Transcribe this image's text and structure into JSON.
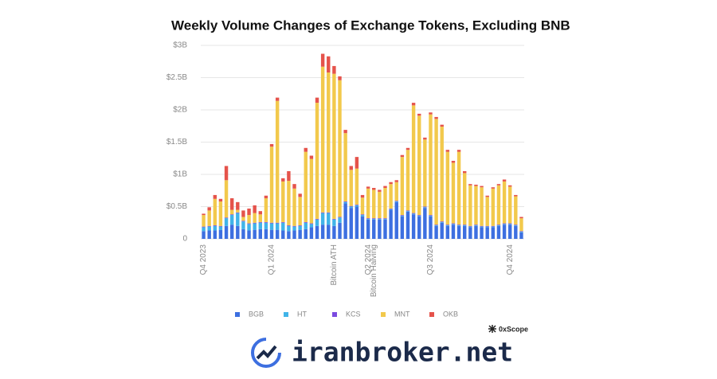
{
  "chart_data": {
    "type": "stacked-bar",
    "title": "Weekly Volume Changes of Exchange Tokens, Excluding BNB",
    "source": "0xScope",
    "watermark": "iranbroker.net",
    "categories": [
      "Q4 2023",
      null,
      null,
      null,
      null,
      null,
      null,
      null,
      null,
      null,
      null,
      null,
      "Q1 2024",
      null,
      null,
      null,
      null,
      null,
      null,
      null,
      null,
      null,
      null,
      "Bitcoin ATH",
      null,
      null,
      null,
      null,
      null,
      "Q2 2024",
      "Bitcoin Halving",
      null,
      null,
      null,
      null,
      null,
      null,
      null,
      null,
      null,
      "Q3 2024",
      null,
      null,
      null,
      null,
      null,
      null,
      null,
      null,
      null,
      null,
      null,
      null,
      null,
      "Q4 2024",
      null,
      null
    ],
    "ylim": [
      0,
      3
    ],
    "yticks": [
      0,
      {
        "value": 0.5,
        "label": "$0.5B"
      },
      {
        "value": 1,
        "label": "$1B"
      },
      {
        "value": 1.5,
        "label": "$1.5B"
      },
      {
        "value": 2,
        "label": "$2B"
      },
      {
        "value": 2.5,
        "label": "$2.5B"
      },
      {
        "value": 3,
        "label": "$3B"
      }
    ],
    "grid": true,
    "legend": "bottom",
    "series": [
      {
        "name": "BGB",
        "color": "#3d6fe0",
        "values": [
          0.12,
          0.13,
          0.13,
          0.14,
          0.2,
          0.22,
          0.2,
          0.15,
          0.13,
          0.14,
          0.15,
          0.15,
          0.14,
          0.14,
          0.13,
          0.12,
          0.13,
          0.14,
          0.15,
          0.18,
          0.2,
          0.22,
          0.22,
          0.2,
          0.25,
          0.55,
          0.48,
          0.5,
          0.35,
          0.3,
          0.3,
          0.3,
          0.3,
          0.45,
          0.57,
          0.35,
          0.42,
          0.38,
          0.35,
          0.48,
          0.35,
          0.2,
          0.25,
          0.2,
          0.22,
          0.2,
          0.2,
          0.18,
          0.2,
          0.18,
          0.18,
          0.18,
          0.2,
          0.22,
          0.22,
          0.2,
          0.1
        ]
      },
      {
        "name": "HT",
        "color": "#41b4e8",
        "values": [
          0.06,
          0.06,
          0.07,
          0.05,
          0.12,
          0.15,
          0.2,
          0.12,
          0.1,
          0.1,
          0.1,
          0.1,
          0.1,
          0.1,
          0.12,
          0.08,
          0.06,
          0.06,
          0.1,
          0.05,
          0.1,
          0.18,
          0.18,
          0.1,
          0.08,
          0.02,
          0.02,
          0.02,
          0.02,
          0.01,
          0.01,
          0.01,
          0.01,
          0.01,
          0.01,
          0.01,
          0.01,
          0.01,
          0.01,
          0.01,
          0.01,
          0.01,
          0.01,
          0.01,
          0.01,
          0.01,
          0.01,
          0.01,
          0.01,
          0.01,
          0.01,
          0.01,
          0.01,
          0.01,
          0.01,
          0.01,
          0.01
        ]
      },
      {
        "name": "KCS",
        "color": "#7b4be0",
        "values": [
          0.01,
          0.01,
          0.01,
          0.01,
          0.01,
          0.01,
          0.01,
          0.01,
          0.01,
          0.01,
          0.01,
          0.01,
          0.01,
          0.01,
          0.01,
          0.01,
          0.01,
          0.01,
          0.01,
          0.01,
          0.01,
          0.01,
          0.01,
          0.01,
          0.01,
          0.01,
          0.01,
          0.01,
          0.01,
          0.01,
          0.01,
          0.01,
          0.01,
          0.01,
          0.01,
          0.01,
          0.01,
          0.01,
          0.01,
          0.01,
          0.01,
          0.01,
          0.01,
          0.01,
          0.01,
          0.01,
          0.01,
          0.01,
          0.01,
          0.01,
          0.01,
          0.01,
          0.01,
          0.01,
          0.01,
          0.01,
          0.01
        ]
      },
      {
        "name": "MNT",
        "color": "#f2c94c",
        "values": [
          0.18,
          0.24,
          0.41,
          0.38,
          0.58,
          0.07,
          0.04,
          0.06,
          0.13,
          0.15,
          0.12,
          0.37,
          1.18,
          1.89,
          0.63,
          0.69,
          0.58,
          0.44,
          1.09,
          1.0,
          1.8,
          2.26,
          2.17,
          2.25,
          2.12,
          1.06,
          0.56,
          0.56,
          0.26,
          0.46,
          0.44,
          0.41,
          0.47,
          0.38,
          0.29,
          0.9,
          0.94,
          1.67,
          1.54,
          1.04,
          1.56,
          1.64,
          1.47,
          1.13,
          0.94,
          1.13,
          0.8,
          0.63,
          0.6,
          0.6,
          0.45,
          0.58,
          0.61,
          0.65,
          0.57,
          0.44,
          0.2
        ]
      },
      {
        "name": "OKB",
        "color": "#e5534b",
        "values": [
          0.02,
          0.05,
          0.06,
          0.04,
          0.22,
          0.18,
          0.12,
          0.1,
          0.1,
          0.12,
          0.05,
          0.04,
          0.04,
          0.05,
          0.05,
          0.15,
          0.07,
          0.05,
          0.06,
          0.05,
          0.08,
          0.2,
          0.25,
          0.12,
          0.06,
          0.05,
          0.06,
          0.18,
          0.04,
          0.03,
          0.03,
          0.03,
          0.03,
          0.03,
          0.03,
          0.03,
          0.03,
          0.04,
          0.03,
          0.03,
          0.03,
          0.03,
          0.03,
          0.03,
          0.03,
          0.03,
          0.03,
          0.02,
          0.02,
          0.02,
          0.02,
          0.02,
          0.02,
          0.03,
          0.02,
          0.02,
          0.02
        ]
      }
    ]
  }
}
